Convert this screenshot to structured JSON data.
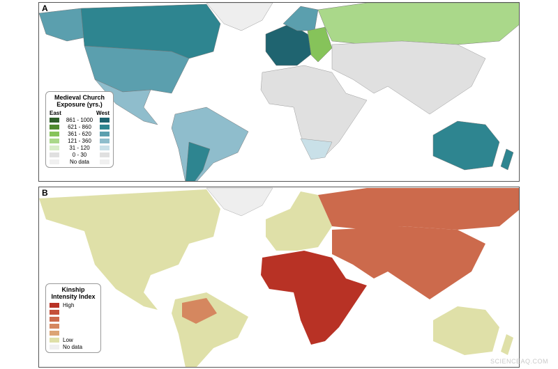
{
  "panel_a": {
    "label": "A",
    "legend": {
      "title": "Medieval Church Exposure (yrs.)",
      "east_label": "East",
      "west_label": "West",
      "rows": [
        {
          "range": "861 - 1000",
          "east": "#2f5f2a",
          "west": "#1f6470"
        },
        {
          "range": "621 - 860",
          "east": "#4e8a2e",
          "west": "#2e8590"
        },
        {
          "range": "361 - 620",
          "east": "#86c35a",
          "west": "#5b9fae"
        },
        {
          "range": "121 - 360",
          "east": "#aad88a",
          "west": "#8fbdcc"
        },
        {
          "range": "31 - 120",
          "east": "#d8edc8",
          "west": "#c9e0e8"
        },
        {
          "range": "0 - 30",
          "east": "#e0e0e0",
          "west": "#e0e0e0"
        },
        {
          "range": "No data",
          "east": "#f0f0f0",
          "west": "#f0f0f0"
        }
      ]
    }
  },
  "panel_b": {
    "label": "B",
    "legend": {
      "title": "Kinship Intensity Index",
      "high_label": "High",
      "low_label": "Low",
      "nodata_label": "No data",
      "colors": [
        "#b83225",
        "#c4503a",
        "#cc6a4c",
        "#d5875f",
        "#dca474",
        "#dfe0a8",
        "#efefef"
      ]
    }
  },
  "watermark": "SCIENCEAQ.COM"
}
